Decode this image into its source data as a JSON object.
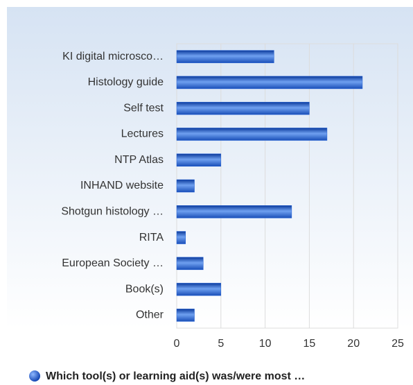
{
  "chart_data": {
    "type": "bar",
    "horizontal": true,
    "categories": [
      "KI digital microsco…",
      "Histology guide",
      "Self test",
      "Lectures",
      "NTP Atlas",
      "INHAND website",
      "Shotgun histology …",
      "RITA",
      "European Society …",
      "Book(s)",
      "Other"
    ],
    "series": [
      {
        "name": "Which tool(s) or learning aid(s) was/were most …",
        "color": "#1f5fd6",
        "values": [
          11,
          21,
          15,
          17,
          5,
          2,
          13,
          1,
          3,
          5,
          2
        ]
      }
    ],
    "xlim": [
      0,
      25
    ],
    "xticks": [
      0,
      5,
      10,
      15,
      20,
      25
    ],
    "grid": true,
    "legend": "bottom"
  }
}
